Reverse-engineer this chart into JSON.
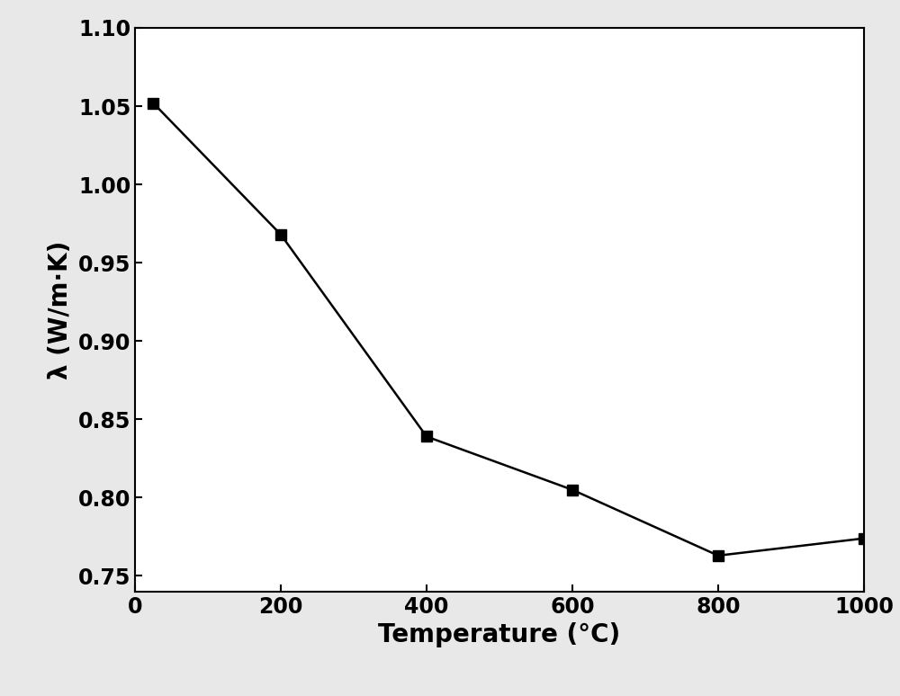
{
  "x": [
    25,
    200,
    400,
    600,
    800,
    1000
  ],
  "y": [
    1.052,
    0.968,
    0.839,
    0.805,
    0.763,
    0.774
  ],
  "xlabel": "Temperature (°C)",
  "ylabel": "λ (W/m·K)",
  "xlim": [
    0,
    1000
  ],
  "ylim": [
    0.74,
    1.1
  ],
  "yticks": [
    0.75,
    0.8,
    0.85,
    0.9,
    0.95,
    1.0,
    1.05,
    1.1
  ],
  "xticks": [
    0,
    200,
    400,
    600,
    800,
    1000
  ],
  "line_color": "#000000",
  "marker": "s",
  "marker_color": "#000000",
  "marker_size": 9,
  "line_width": 1.8,
  "background_color": "#e8e8e8",
  "plot_bg_color": "#ffffff",
  "xlabel_fontsize": 20,
  "ylabel_fontsize": 20,
  "tick_fontsize": 17,
  "xlabel_fontweight": "bold",
  "ylabel_fontweight": "bold",
  "tick_fontweight": "bold"
}
